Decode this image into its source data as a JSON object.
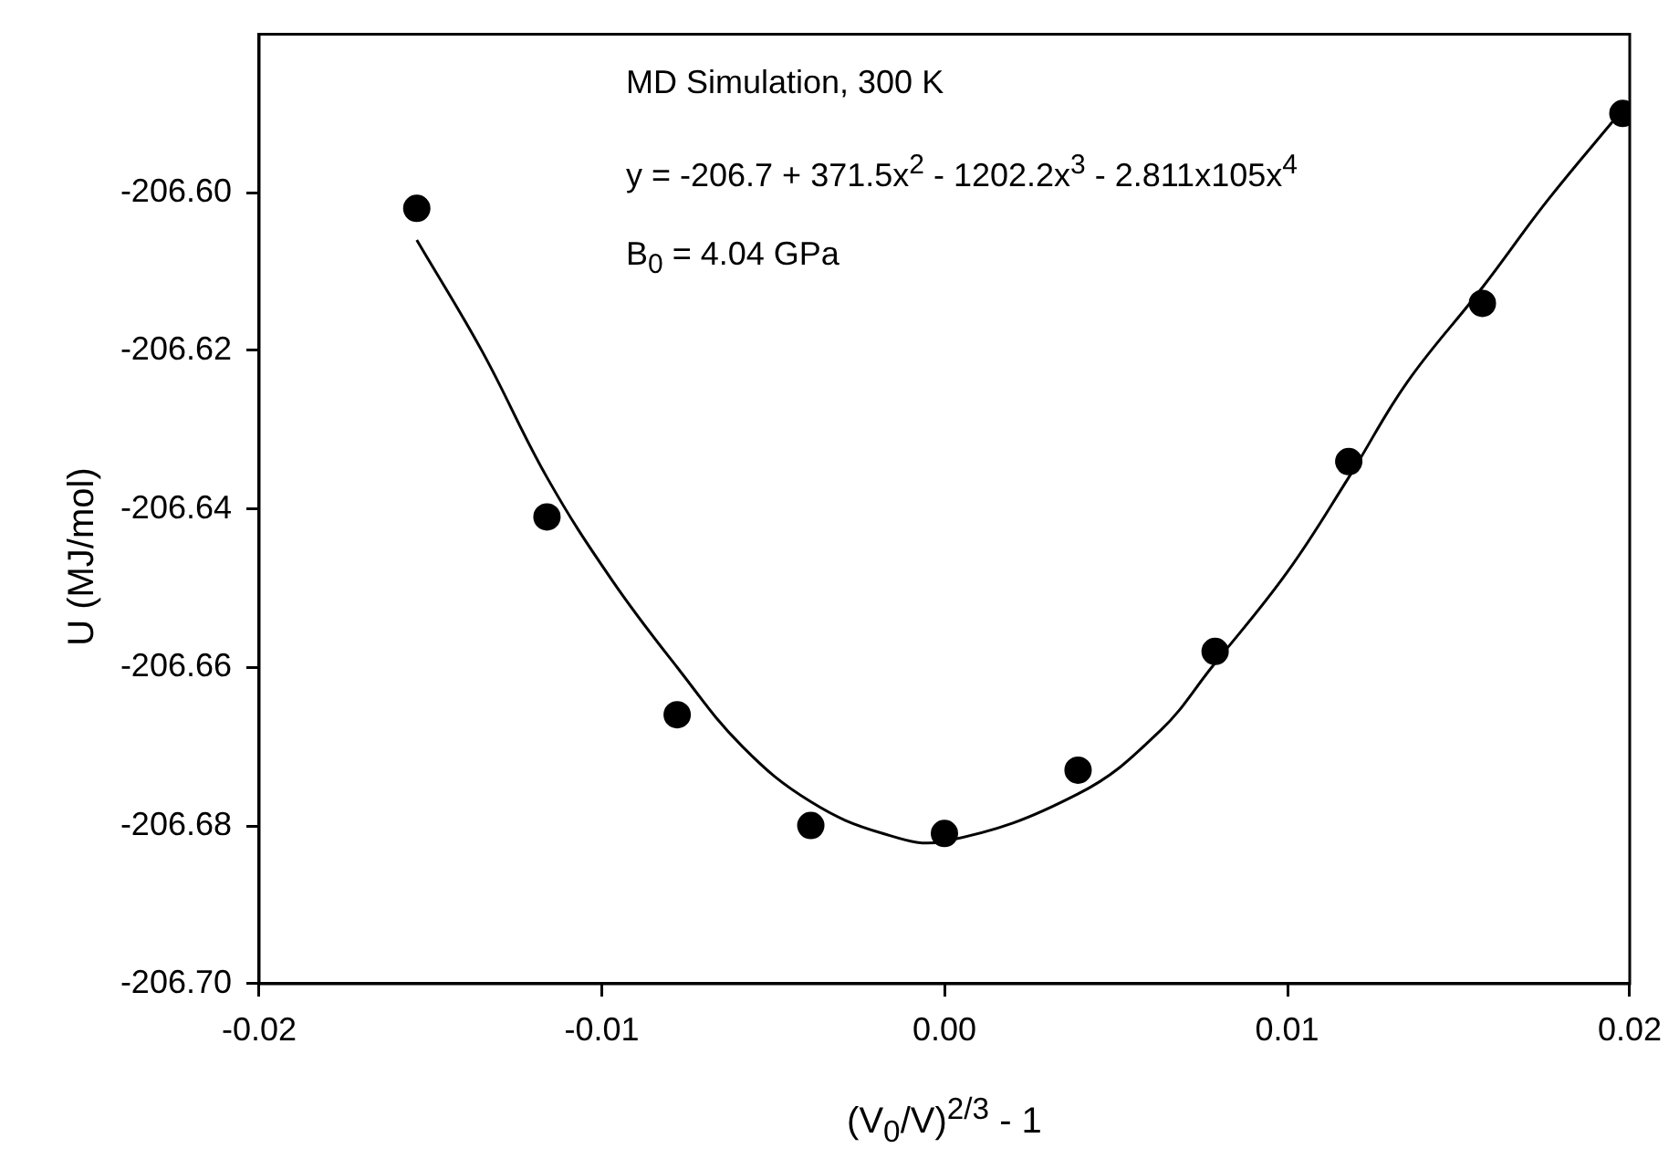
{
  "chart_data": {
    "type": "scatter",
    "xlabel": "(V$_{0}$/V)$^{2/3}$ - 1",
    "ylabel": "U (MJ/mol)",
    "annotations": [
      "MD Simulation, 300 K",
      "y = -206.7 + 371.5x$^{2}$ - 1202.2x$^{3}$ - 2.811x105x$^{4}$",
      "B$_{0}$ = 4.04 GPa"
    ],
    "xlim": [
      -0.02,
      0.02
    ],
    "xticks": [
      -0.02,
      -0.01,
      {
        "value": 0,
        "label": "0.00"
      },
      0.01,
      0.02
    ],
    "ylim": [
      -206.7,
      -206.58
    ],
    "yticks": [
      {
        "value": -206.7,
        "label": "-206.70"
      },
      -206.68,
      -206.66,
      -206.64,
      -206.62,
      {
        "value": -206.6,
        "label": "-206.60"
      }
    ],
    "series": [
      {
        "type": "scatter",
        "color": "#000000",
        "marker": "circle",
        "x": [
          -0.0154,
          -0.0116,
          -0.0078,
          -0.0039,
          0,
          0.0039,
          0.0079,
          0.0118,
          0.0157,
          0.0198
        ],
        "values": [
          -206.602,
          -206.641,
          -206.666,
          -206.68,
          -206.681,
          -206.673,
          -206.658,
          -206.634,
          -206.614,
          -206.59
        ]
      },
      {
        "type": "line",
        "color": "#000000",
        "marker": "none",
        "x": [
          -0.0154,
          -0.0135,
          -0.0116,
          -0.0097,
          -0.0078,
          -0.0059,
          -0.0039,
          -0.0018,
          0,
          0.0039,
          0.0063,
          0.0078,
          0.01,
          0.0118,
          0.0135,
          0.0157,
          0.0176,
          0.0197
        ],
        "values": [
          -206.606,
          -206.62,
          -206.636,
          -206.649,
          -206.66,
          -206.67,
          -206.677,
          -206.681,
          -206.682,
          -206.676,
          -206.668,
          -206.66,
          -206.648,
          -206.636,
          -206.624,
          -206.612,
          -206.601,
          -206.59
        ]
      }
    ]
  }
}
